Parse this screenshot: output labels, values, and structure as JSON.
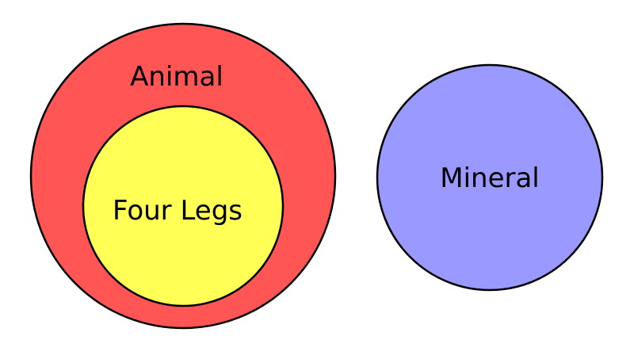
{
  "diagram": {
    "sets": [
      {
        "id": "animal",
        "label": "Animal",
        "fill": "#ff5555"
      },
      {
        "id": "four_legs",
        "label": "Four Legs",
        "fill": "#ffff55",
        "subset_of": "animal"
      },
      {
        "id": "mineral",
        "label": "Mineral",
        "fill": "#9999ff"
      }
    ],
    "stroke_color": "#000000"
  }
}
